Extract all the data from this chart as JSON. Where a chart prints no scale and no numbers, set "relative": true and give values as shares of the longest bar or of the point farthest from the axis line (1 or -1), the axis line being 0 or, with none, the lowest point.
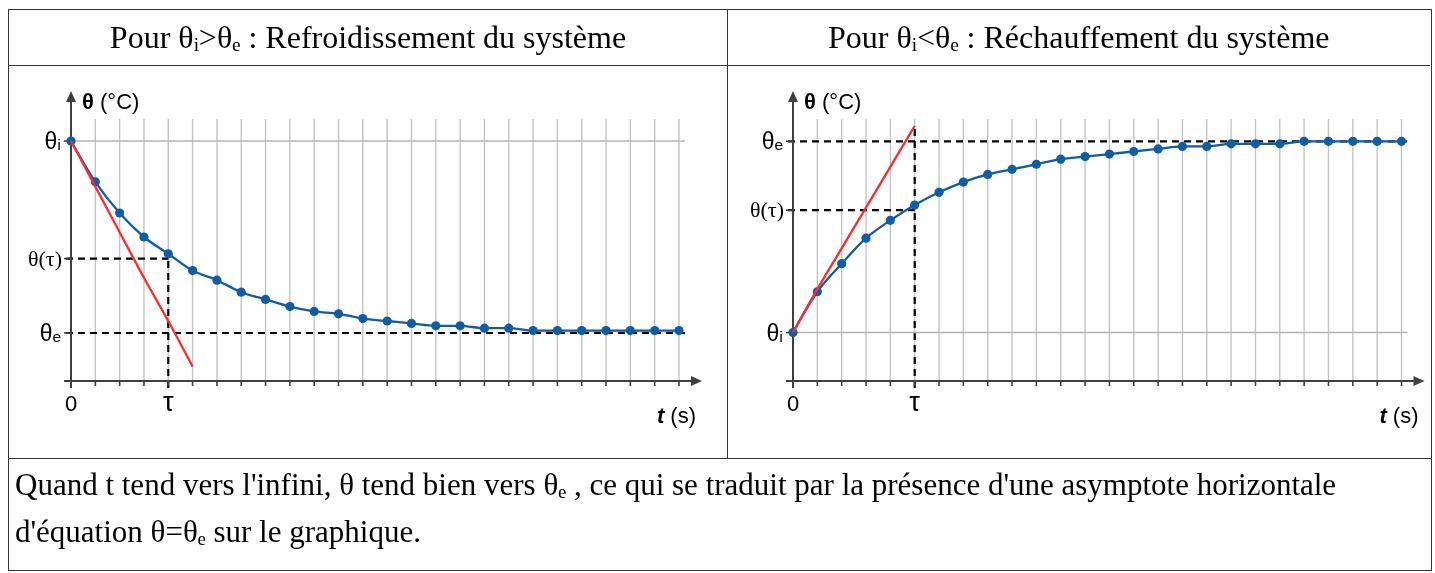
{
  "chart_data": [
    {
      "type": "line",
      "title": "Pour θᵢ>θₑ : Refroidissement du système",
      "xlabel": "t (s)",
      "ylabel": "θ (°C)",
      "relative": true,
      "grid": "x",
      "marker": "circle",
      "tick_labels": "x",
      "categories": [
        "0",
        null,
        null,
        null,
        "τ",
        null,
        null,
        null,
        null,
        null,
        null,
        null,
        null,
        null,
        null,
        null,
        null,
        null,
        null,
        null,
        null,
        null,
        null,
        null,
        null,
        null
      ],
      "series": [
        {
          "color": "#105ca5",
          "values": [
            1,
            0.83,
            0.7,
            0.6,
            0.53,
            0.46,
            0.42,
            0.37,
            0.34,
            0.31,
            0.29,
            0.28,
            0.26,
            0.25,
            0.24,
            0.23,
            0.23,
            0.22,
            0.22,
            0.21,
            0.21,
            0.21,
            0.21,
            0.21,
            0.21,
            0.21
          ]
        },
        {
          "type": "line",
          "color": "#ff2a2a",
          "marker": "none",
          "values": [
            1,
            0.81,
            0.62,
            0.43,
            0.25,
            0.06,
            null,
            null,
            null,
            null,
            null,
            null,
            null,
            null,
            null,
            null,
            null,
            null,
            null,
            null,
            null,
            null,
            null,
            null,
            null,
            null
          ]
        }
      ],
      "ref_lines": [
        {
          "axis": "y",
          "value": 1,
          "label": "θᵢ",
          "color": "#b4b4b4"
        },
        {
          "axis": "y",
          "value": 0.2,
          "label": "θₑ",
          "color": "#000000",
          "line_style": "dashed"
        },
        {
          "axis": "y",
          "value": 0.51,
          "label": "θ(τ)",
          "color": "#000000",
          "line_style": "dashed"
        },
        {
          "axis": "x",
          "value": "τ",
          "color": "#000000",
          "line_style": "dashed"
        }
      ]
    },
    {
      "type": "line",
      "title": "Pour θᵢ<θₑ : Réchauffement du système",
      "xlabel": "t (s)",
      "ylabel": "θ (°C)",
      "relative": true,
      "grid": "x",
      "marker": "circle",
      "tick_labels": "x",
      "categories": [
        "0",
        null,
        null,
        null,
        null,
        "τ",
        null,
        null,
        null,
        null,
        null,
        null,
        null,
        null,
        null,
        null,
        null,
        null,
        null,
        null,
        null,
        null,
        null,
        null,
        null,
        null
      ],
      "series": [
        {
          "color": "#105ca5",
          "values": [
            0.19,
            0.35,
            0.46,
            0.56,
            0.63,
            0.69,
            0.74,
            0.78,
            0.81,
            0.83,
            0.85,
            0.87,
            0.88,
            0.89,
            0.9,
            0.91,
            0.92,
            0.92,
            0.93,
            0.93,
            0.93,
            0.94,
            0.94,
            0.94,
            0.94,
            0.94
          ]
        },
        {
          "type": "line",
          "color": "#ff2a2a",
          "marker": "none",
          "values": [
            0.19,
            0.36,
            0.52,
            0.68,
            0.84,
            1,
            null,
            null,
            null,
            null,
            null,
            null,
            null,
            null,
            null,
            null,
            null,
            null,
            null,
            null,
            null,
            null,
            null,
            null,
            null,
            null
          ]
        }
      ],
      "ref_lines": [
        {
          "axis": "y",
          "value": 0.19,
          "label": "θᵢ",
          "color": "#b4b4b4"
        },
        {
          "axis": "y",
          "value": 0.94,
          "label": "θₑ",
          "color": "#000000",
          "line_style": "dashed"
        },
        {
          "axis": "y",
          "value": 0.67,
          "label": "θ(τ)",
          "color": "#000000",
          "line_style": "dashed"
        },
        {
          "axis": "x",
          "value": "τ",
          "color": "#000000",
          "line_style": "dashed"
        }
      ],
      "annotations": [
        "Quand t tend vers l'infini, θ tend bien vers θₑ , ce qui se traduit par la présence d'une asymptote horizontale d'équation θ=θₑ sur le graphique."
      ]
    }
  ]
}
